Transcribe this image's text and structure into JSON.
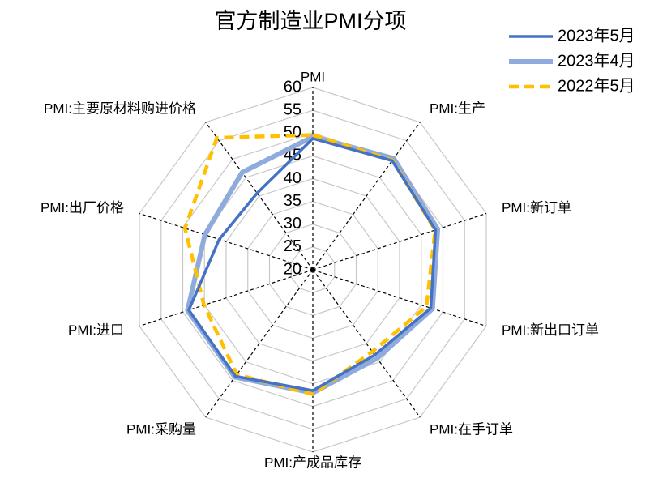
{
  "chart_data": {
    "type": "radar",
    "title": "官方制造业PMI分项",
    "categories": [
      "PMI",
      "PMI:生产",
      "PMI:新订单",
      "PMI:新出口订单",
      "PMI:在手订单",
      "PMI:产成品库存",
      "PMI:采购量",
      "PMI:进口",
      "PMI:出厂价格",
      "PMI:主要原材料购进价格"
    ],
    "series": [
      {
        "name": "2023年5月",
        "color": "#4472c4",
        "values": [
          48.8,
          49.6,
          48.3,
          47.2,
          43.1,
          46.5,
          48.9,
          48.6,
          41.6,
          40.8
        ]
      },
      {
        "name": "2023年4月",
        "color": "#8faadc",
        "values": [
          49.2,
          50.2,
          48.8,
          47.6,
          44.0,
          47.0,
          49.1,
          48.9,
          44.9,
          46.4
        ]
      },
      {
        "name": "2022年5月",
        "color": "#ffc000",
        "values": [
          49.6,
          49.7,
          48.2,
          46.2,
          42.2,
          47.3,
          48.4,
          45.1,
          49.5,
          55.8
        ]
      }
    ],
    "ylim": [
      20,
      60
    ],
    "yticks": [
      20,
      25,
      30,
      35,
      40,
      45,
      50,
      55,
      60
    ],
    "grid": true,
    "legend": "top-right"
  }
}
